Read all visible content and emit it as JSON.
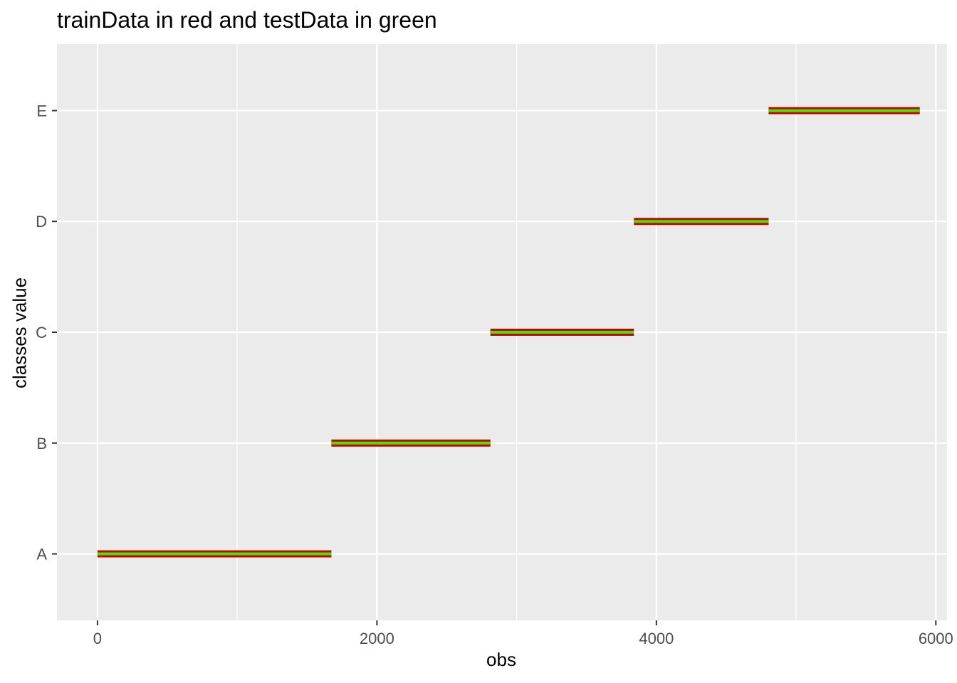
{
  "chart_data": {
    "type": "range-segments",
    "title": "trainData in red and testData in green",
    "xlabel": "obs",
    "ylabel": "classes value",
    "xlim": [
      -290,
      6080
    ],
    "xticks": [
      0,
      2000,
      4000,
      6000
    ],
    "xtick_labels": [
      "0",
      "2000",
      "4000",
      "6000"
    ],
    "categories": [
      "A",
      "B",
      "C",
      "D",
      "E"
    ],
    "grid": true,
    "background_color": "#EBEBEB",
    "grid_color": "#FFFFFF",
    "tick_label_color": "#4D4D4D",
    "series": [
      {
        "color": "#D00000",
        "segments": [
          {
            "category": "A",
            "start": 0,
            "end": 1674
          },
          {
            "category": "B",
            "start": 1674,
            "end": 2812
          },
          {
            "category": "C",
            "start": 2812,
            "end": 3839
          },
          {
            "category": "D",
            "start": 3839,
            "end": 4803
          },
          {
            "category": "E",
            "start": 4803,
            "end": 5885
          }
        ]
      },
      {
        "color": "#33EE00",
        "segments": [
          {
            "category": "A",
            "start": 0,
            "end": 1674
          },
          {
            "category": "B",
            "start": 1674,
            "end": 2812
          },
          {
            "category": "C",
            "start": 2812,
            "end": 3839
          },
          {
            "category": "D",
            "start": 3839,
            "end": 4803
          },
          {
            "category": "E",
            "start": 4803,
            "end": 5885
          }
        ]
      }
    ]
  }
}
